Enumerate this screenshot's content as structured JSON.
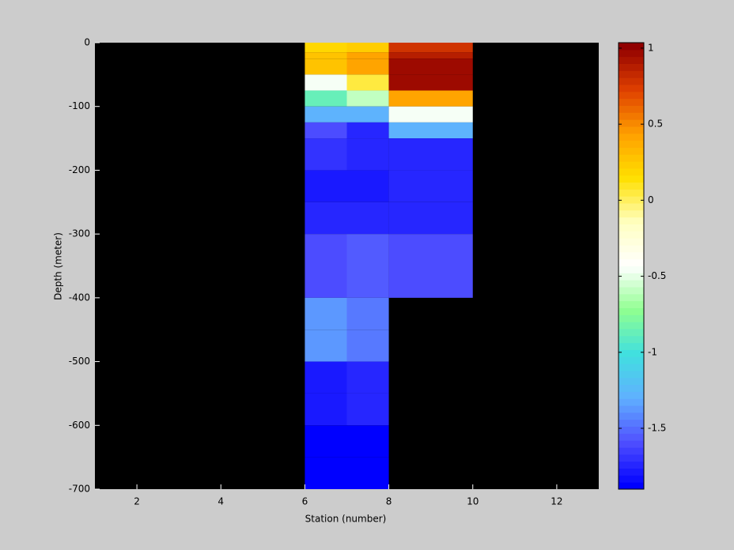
{
  "chart_data": {
    "type": "heatmap",
    "xlabel": "Station (number)",
    "ylabel": "Depth (meter)",
    "xlim": [
      1,
      13
    ],
    "xticks": [
      2,
      4,
      6,
      8,
      10,
      12
    ],
    "ylim": [
      -700,
      0
    ],
    "yticks": [
      0,
      -100,
      -200,
      -300,
      -400,
      -500,
      -600,
      -700
    ],
    "x_edges": [
      6,
      7,
      8,
      10
    ],
    "y_edges": [
      0,
      -15,
      -25,
      -50,
      -75,
      -100,
      -125,
      -150,
      -200,
      -250,
      -300,
      -350,
      -400,
      -450,
      -500,
      -550,
      -600,
      -650,
      -700
    ],
    "values": [
      [
        0.2,
        0.25,
        0.8
      ],
      [
        0.3,
        0.4,
        0.88
      ],
      [
        0.3,
        0.4,
        0.98
      ],
      [
        -0.45,
        0.05,
        0.98
      ],
      [
        -0.85,
        -0.6,
        0.4
      ],
      [
        -1.3,
        -1.3,
        -0.45
      ],
      [
        -1.62,
        -1.72,
        -1.3
      ],
      [
        -1.68,
        -1.72,
        -1.72
      ],
      [
        -1.78,
        -1.78,
        -1.72
      ],
      [
        -1.72,
        -1.72,
        -1.72
      ],
      [
        -1.6,
        -1.55,
        -1.58
      ],
      [
        -1.6,
        -1.55,
        -1.58
      ],
      [
        -1.38,
        -1.45,
        null
      ],
      [
        -1.38,
        -1.45,
        null
      ],
      [
        -1.78,
        -1.75,
        null
      ],
      [
        -1.78,
        -1.75,
        null
      ],
      [
        -1.9,
        -1.9,
        null
      ],
      [
        -1.9,
        -1.9,
        null
      ]
    ],
    "clim": [
      -1.9,
      1.036
    ],
    "cticks": [
      -1.5,
      -1,
      -0.5,
      0,
      0.5,
      1
    ],
    "colormap": [
      "#0000ff",
      "#5050ff",
      "#60b0ff",
      "#40e0e0",
      "#90ff90",
      "#ffffff",
      "#ffffc0",
      "#ffe000",
      "#ffa000",
      "#e04000",
      "#900000"
    ],
    "background": "#000000"
  }
}
